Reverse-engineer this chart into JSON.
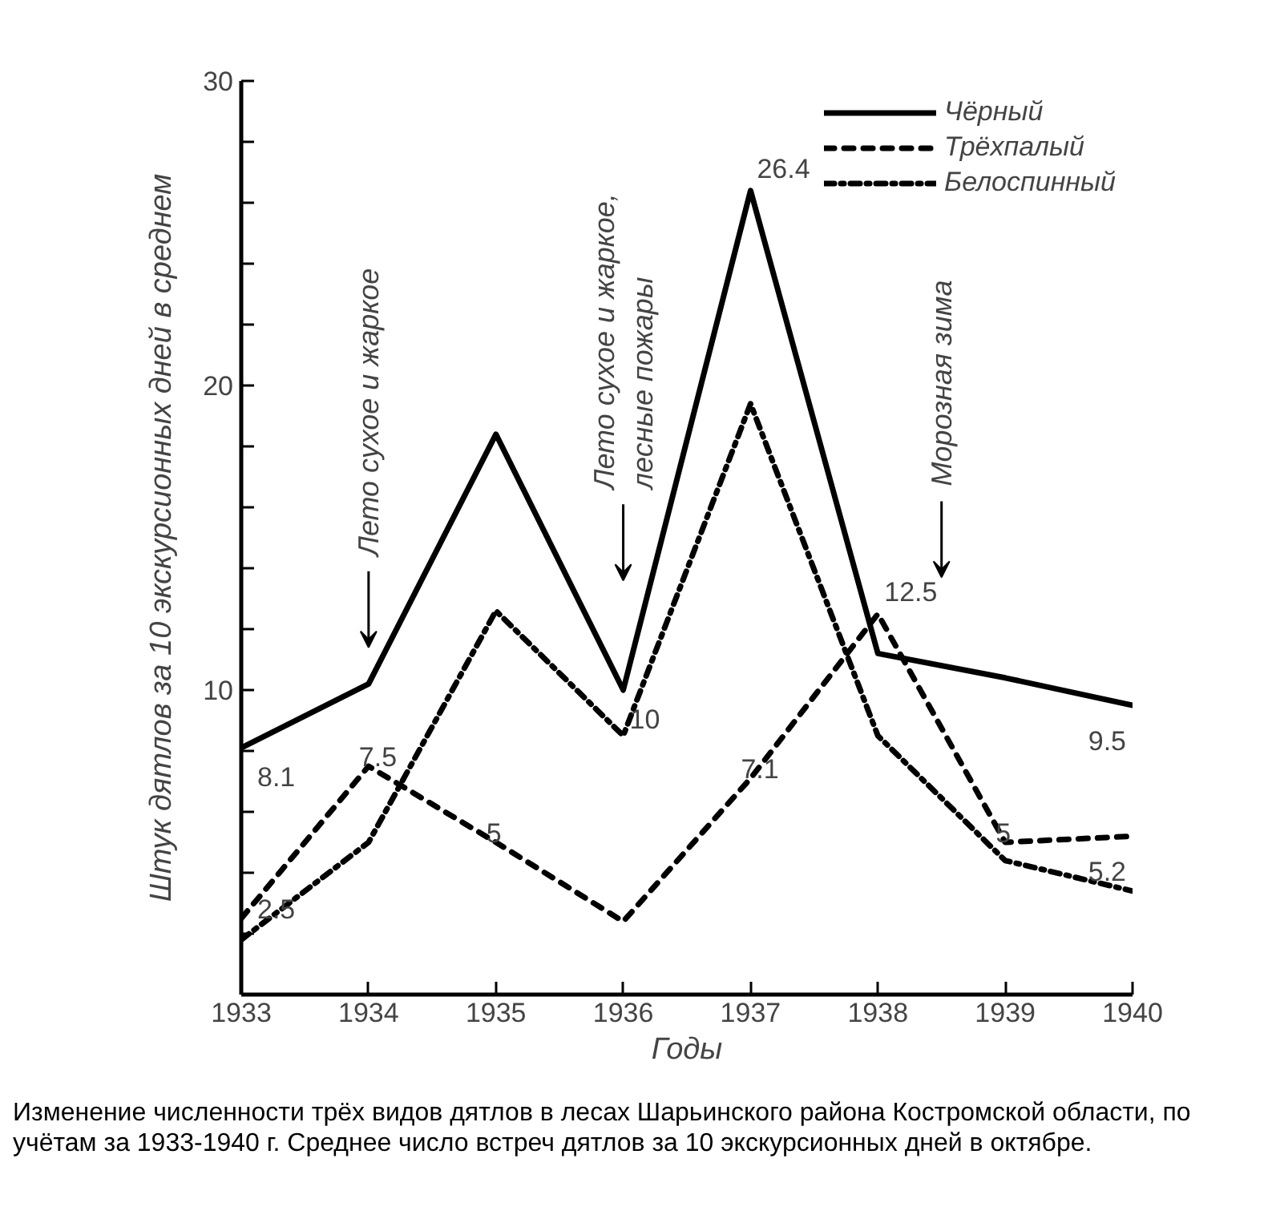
{
  "chart_data": {
    "type": "line",
    "xlabel": "Годы",
    "ylabel": "Штук дятлов за 10 экскурсионных дней в среднем",
    "x": [
      1933,
      1934,
      1935,
      1936,
      1937,
      1938,
      1939,
      1940
    ],
    "xlim": [
      1933,
      1940
    ],
    "xticks": [
      1933,
      1934,
      1935,
      1936,
      1937,
      1938,
      1939,
      1940
    ],
    "ylim": [
      0,
      30
    ],
    "yticks": [
      {
        "value": 2,
        "label": null
      },
      {
        "value": 4,
        "label": null
      },
      {
        "value": 6,
        "label": null
      },
      {
        "value": 8,
        "label": null
      },
      10,
      {
        "value": 12,
        "label": null
      },
      {
        "value": 14,
        "label": null
      },
      {
        "value": 16,
        "label": null
      },
      {
        "value": 18,
        "label": null
      },
      20,
      {
        "value": 22,
        "label": null
      },
      {
        "value": 24,
        "label": null
      },
      {
        "value": 26,
        "label": null
      },
      {
        "value": 28,
        "label": null
      },
      30
    ],
    "grid": false,
    "legend": "top right",
    "marker": "none",
    "series": [
      {
        "name": "Чёрный",
        "color": "#000000",
        "line_style": "solid",
        "values": [
          8.1,
          10.2,
          18.4,
          10,
          26.4,
          11.2,
          10.4,
          9.5
        ],
        "value_labels": [
          "8.1",
          null,
          null,
          "10",
          "26.4",
          null,
          null,
          "9.5"
        ]
      },
      {
        "name": "Трёхпалый",
        "color": "#000000",
        "line_style": "dashed",
        "values": [
          2.5,
          7.5,
          5,
          2.4,
          7.1,
          12.5,
          5,
          5.2
        ],
        "value_labels": [
          "2.5",
          "7.5",
          "5",
          null,
          "7.1",
          "12.5",
          "5",
          "5.2"
        ]
      },
      {
        "name": "Белоспинный",
        "color": "#000000",
        "line_style": "dashdot",
        "values": [
          1.8,
          5,
          12.6,
          8.5,
          19.4,
          8.5,
          4.4,
          3.4
        ]
      }
    ],
    "annotations": [
      "Лето сухое и жаркое",
      "Лето сухое и жаркое,\nлесные пожары",
      "Морозная зима",
      "Изменение численности трёх видов дятлов в лесах Шарьинского района Костромской области, по учётам за 1933-1940 г. Среднее число встреч дятлов за 10 экскурсионных дней в октябре."
    ]
  }
}
